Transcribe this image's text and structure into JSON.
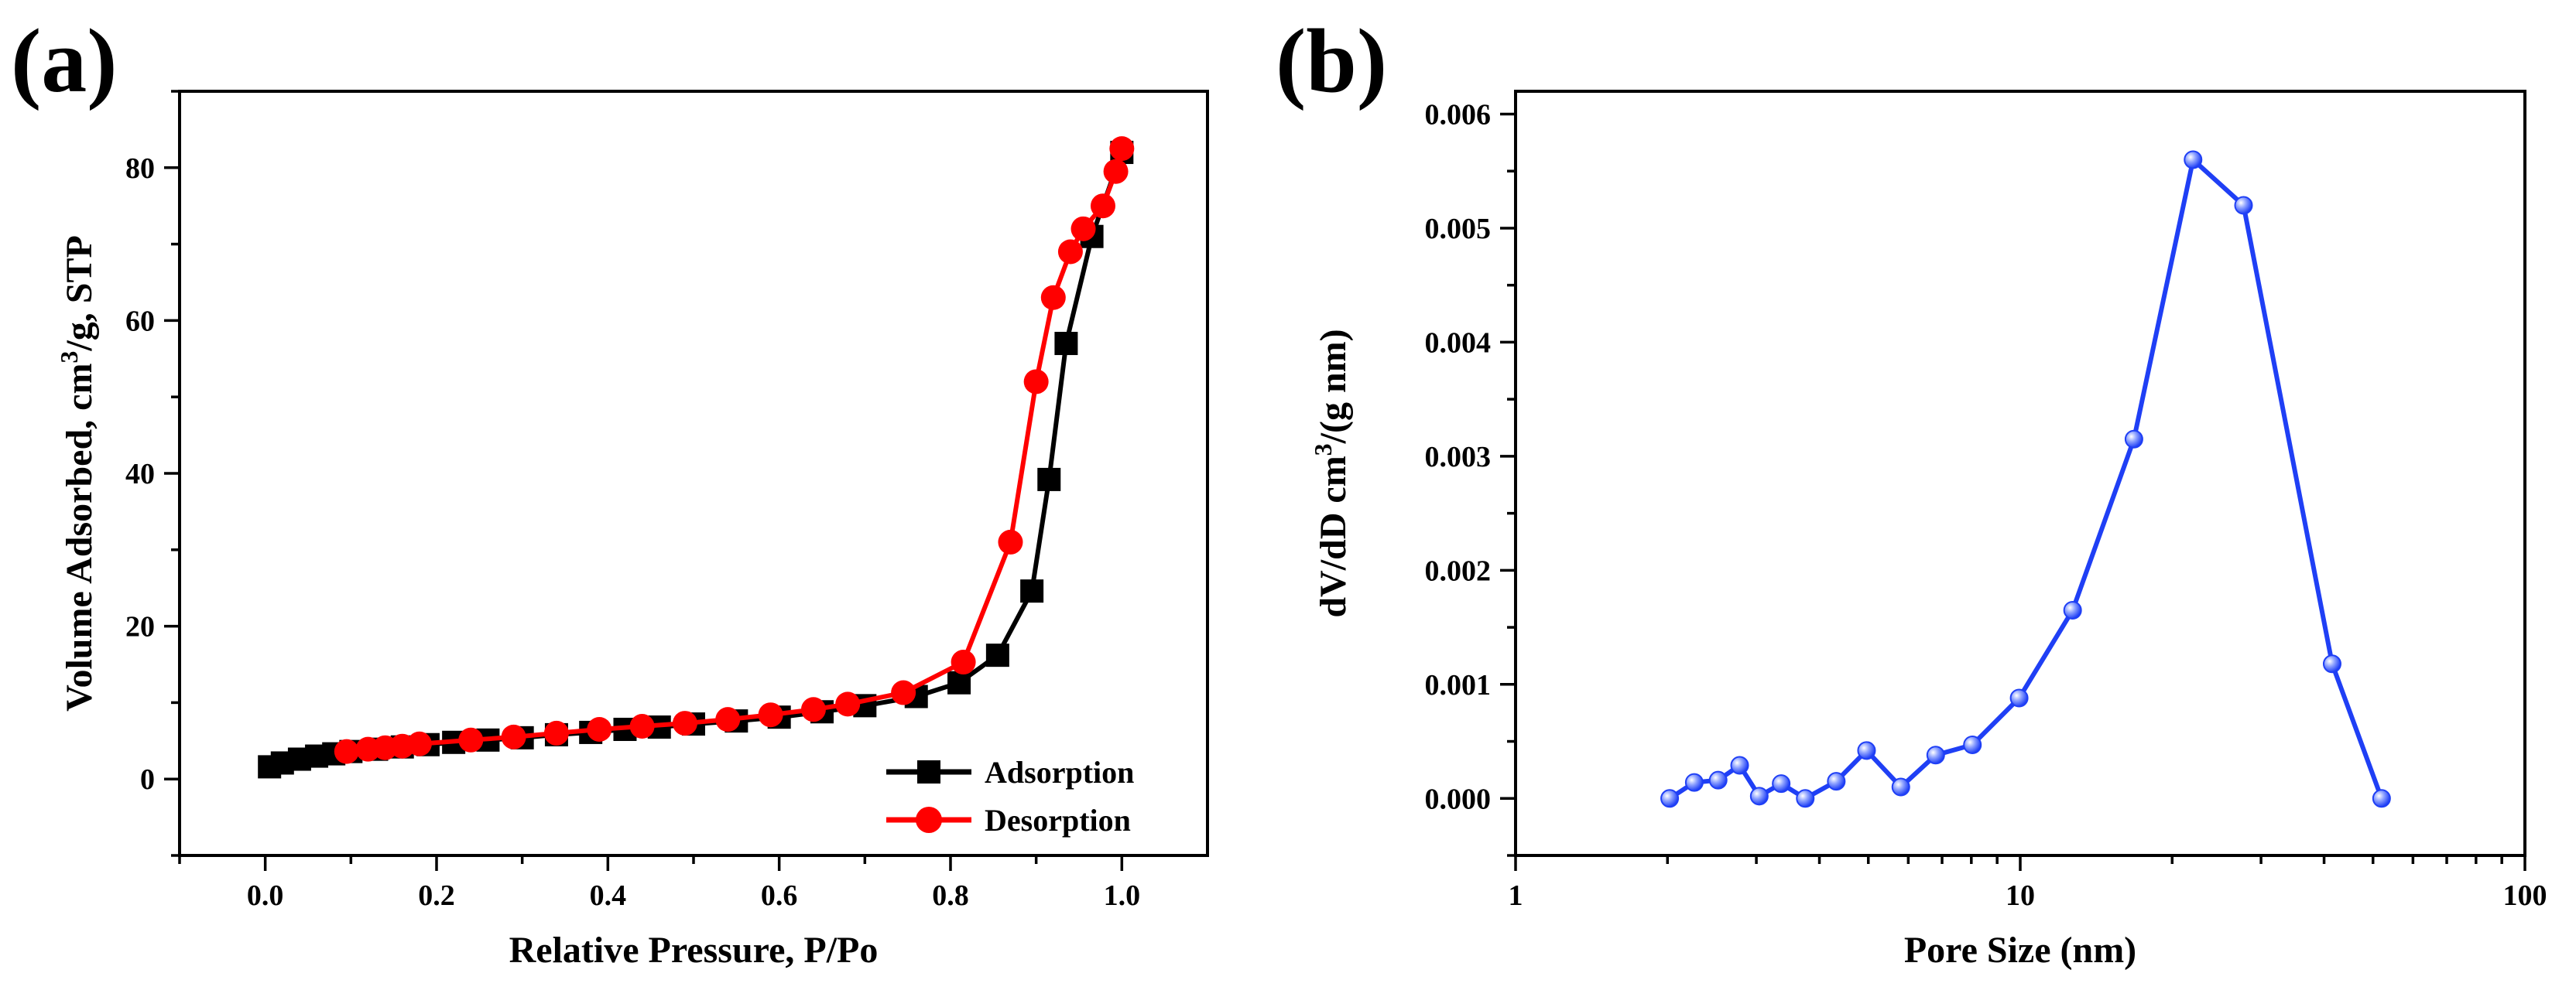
{
  "chart_data": [
    {
      "panel_label": "(a)",
      "type": "line",
      "xlabel": "Relative Pressure, P/Po",
      "ylabel_main": "Volume Adsorbed, cm",
      "ylabel_sup": "3",
      "ylabel_tail": "/g, STP",
      "xlim": [
        -0.1,
        1.1
      ],
      "ylim": [
        -10,
        90
      ],
      "xticks": [
        0.0,
        0.2,
        0.4,
        0.6,
        0.8,
        1.0
      ],
      "xtick_labels": [
        "0.0",
        "0.2",
        "0.4",
        "0.6",
        "0.8",
        "1.0"
      ],
      "yticks": [
        0,
        20,
        40,
        60,
        80
      ],
      "ytick_labels": [
        "0",
        "20",
        "40",
        "60",
        "80"
      ],
      "grid": false,
      "legend_position": "bottom-right",
      "series": [
        {
          "name": "Adsorption",
          "color": "#000000",
          "marker": "square",
          "x": [
            0.005,
            0.02,
            0.04,
            0.06,
            0.08,
            0.1,
            0.13,
            0.16,
            0.19,
            0.22,
            0.26,
            0.3,
            0.34,
            0.38,
            0.42,
            0.46,
            0.5,
            0.55,
            0.6,
            0.65,
            0.7,
            0.76,
            0.81,
            0.855,
            0.895,
            0.915,
            0.935,
            0.965,
            1.0
          ],
          "y": [
            1.6,
            2.1,
            2.6,
            3.0,
            3.3,
            3.6,
            3.9,
            4.2,
            4.5,
            4.8,
            5.1,
            5.4,
            5.8,
            6.1,
            6.5,
            6.8,
            7.2,
            7.6,
            8.1,
            8.8,
            9.6,
            10.8,
            12.6,
            16.2,
            24.6,
            39.2,
            57.0,
            71.0,
            82.0
          ]
        },
        {
          "name": "Desorption",
          "color": "#ff0000",
          "marker": "circle",
          "x": [
            0.095,
            0.12,
            0.14,
            0.16,
            0.18,
            0.24,
            0.29,
            0.34,
            0.39,
            0.44,
            0.49,
            0.54,
            0.59,
            0.64,
            0.68,
            0.745,
            0.815,
            0.87,
            0.9,
            0.92,
            0.94,
            0.955,
            0.978,
            0.993,
            1.0
          ],
          "y": [
            3.6,
            3.9,
            4.1,
            4.3,
            4.6,
            5.1,
            5.5,
            6.0,
            6.5,
            6.9,
            7.3,
            7.8,
            8.4,
            9.1,
            9.8,
            11.3,
            15.3,
            31.0,
            52.0,
            63.0,
            69.0,
            72.0,
            75.0,
            79.5,
            82.5
          ]
        }
      ]
    },
    {
      "panel_label": "(b)",
      "type": "line",
      "xlabel": "Pore Size (nm)",
      "ylabel_main": "dV/dD cm",
      "ylabel_sup": "3",
      "ylabel_tail": "/(g nm)",
      "xscale": "log",
      "xlim": [
        1,
        100
      ],
      "ylim": [
        -0.0005,
        0.0062
      ],
      "xticks": [
        1,
        10,
        100
      ],
      "xtick_labels": [
        "1",
        "10",
        "100"
      ],
      "yticks": [
        0,
        0.001,
        0.002,
        0.003,
        0.004,
        0.005,
        0.006
      ],
      "ytick_labels": [
        "0.000",
        "0.001",
        "0.002",
        "0.003",
        "0.004",
        "0.005",
        "0.006"
      ],
      "grid": false,
      "series": [
        {
          "color": "#1f3ff5",
          "marker": "sphere",
          "x": [
            2.02,
            2.26,
            2.52,
            2.78,
            3.04,
            3.36,
            3.75,
            4.32,
            4.96,
            5.8,
            6.8,
            8.04,
            9.95,
            12.7,
            16.8,
            22.0,
            27.7,
            41.5,
            52.0
          ],
          "y": [
            0.0,
            0.00014,
            0.00016,
            0.00029,
            2e-05,
            0.00013,
            0.0,
            0.00015,
            0.00042,
            0.0001,
            0.00038,
            0.00047,
            0.00088,
            0.00165,
            0.00315,
            0.0056,
            0.0052,
            0.00118,
            0.0
          ]
        }
      ]
    }
  ],
  "legend": {
    "adsorption_label": "Adsorption",
    "desorption_label": "Desorption"
  }
}
